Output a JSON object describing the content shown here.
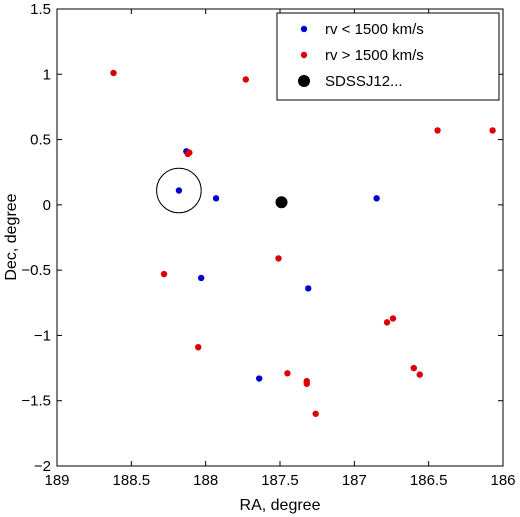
{
  "chart_data": {
    "type": "scatter",
    "xlabel": "RA, degree",
    "ylabel": "Dec, degree",
    "xlim": [
      189,
      186
    ],
    "ylim": [
      -2,
      1.5
    ],
    "x_reversed": true,
    "x_ticks": [
      189,
      188.5,
      188,
      187.5,
      187,
      186.5,
      186
    ],
    "x_tick_labels": [
      "189",
      "188.5",
      "188",
      "187.5",
      "187",
      "186.5",
      "186"
    ],
    "y_ticks": [
      -2,
      -1.5,
      -1,
      -0.5,
      0,
      0.5,
      1,
      1.5
    ],
    "y_tick_labels": [
      "−2",
      "−1.5",
      "−1",
      "−0.5",
      "0",
      "0.5",
      "1",
      "1.5"
    ],
    "grid": false,
    "legend_position": "top-right",
    "series": [
      {
        "name": "rv < 1500 km/s",
        "color": "#0000cc",
        "marker": "small-dot",
        "points": [
          {
            "x": 188.13,
            "y": 0.41
          },
          {
            "x": 188.18,
            "y": 0.11
          },
          {
            "x": 187.93,
            "y": 0.05
          },
          {
            "x": 186.85,
            "y": 0.05
          },
          {
            "x": 188.03,
            "y": -0.56
          },
          {
            "x": 187.31,
            "y": -0.64
          },
          {
            "x": 187.64,
            "y": -1.33
          }
        ]
      },
      {
        "name": "rv > 1500 km/s",
        "color": "#dd0000",
        "marker": "small-dot",
        "points": [
          {
            "x": 188.62,
            "y": 1.01
          },
          {
            "x": 187.73,
            "y": 0.96
          },
          {
            "x": 188.11,
            "y": 0.4
          },
          {
            "x": 188.12,
            "y": 0.39
          },
          {
            "x": 186.44,
            "y": 0.57
          },
          {
            "x": 186.07,
            "y": 0.57
          },
          {
            "x": 188.28,
            "y": -0.53
          },
          {
            "x": 187.51,
            "y": -0.41
          },
          {
            "x": 188.05,
            "y": -1.09
          },
          {
            "x": 186.78,
            "y": -0.9
          },
          {
            "x": 186.74,
            "y": -0.87
          },
          {
            "x": 187.45,
            "y": -1.29
          },
          {
            "x": 187.32,
            "y": -1.35
          },
          {
            "x": 187.32,
            "y": -1.37
          },
          {
            "x": 187.26,
            "y": -1.6
          },
          {
            "x": 186.6,
            "y": -1.25
          },
          {
            "x": 186.56,
            "y": -1.3
          }
        ]
      },
      {
        "name": "SDSSJ12...",
        "color": "#000000",
        "marker": "large-dot",
        "points": [
          {
            "x": 187.49,
            "y": 0.02
          }
        ]
      }
    ],
    "annotations": [
      {
        "type": "circle",
        "center_x": 188.18,
        "center_y": 0.11,
        "radius_deg": 0.15,
        "color": "#000000"
      }
    ]
  }
}
